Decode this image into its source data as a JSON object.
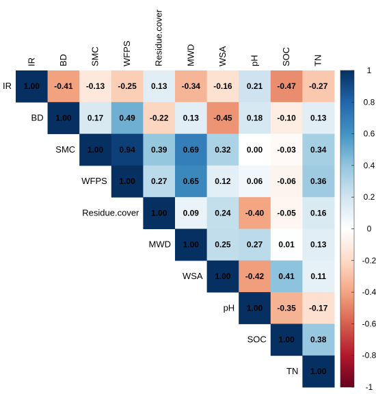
{
  "chart_data": {
    "type": "heatmap",
    "title": "",
    "layout": "upper-triangle",
    "variables": [
      "IR",
      "BD",
      "SMC",
      "WFPS",
      "Residue.cover",
      "MWD",
      "WSA",
      "pH",
      "SOC",
      "TN"
    ],
    "matrix": [
      [
        1.0,
        -0.41,
        -0.13,
        -0.25,
        0.13,
        -0.34,
        -0.16,
        0.21,
        -0.47,
        -0.27
      ],
      [
        null,
        1.0,
        0.17,
        0.49,
        -0.22,
        0.13,
        -0.45,
        0.18,
        -0.1,
        0.13
      ],
      [
        null,
        null,
        1.0,
        0.94,
        0.39,
        0.69,
        0.32,
        0.0,
        -0.03,
        0.34
      ],
      [
        null,
        null,
        null,
        1.0,
        0.27,
        0.65,
        0.12,
        0.06,
        -0.06,
        0.36
      ],
      [
        null,
        null,
        null,
        null,
        1.0,
        0.09,
        0.24,
        -0.4,
        -0.05,
        0.16
      ],
      [
        null,
        null,
        null,
        null,
        null,
        1.0,
        0.25,
        0.27,
        0.01,
        0.13
      ],
      [
        null,
        null,
        null,
        null,
        null,
        null,
        1.0,
        -0.42,
        0.41,
        0.11
      ],
      [
        null,
        null,
        null,
        null,
        null,
        null,
        null,
        1.0,
        -0.35,
        -0.17
      ],
      [
        null,
        null,
        null,
        null,
        null,
        null,
        null,
        null,
        1.0,
        0.38
      ],
      [
        null,
        null,
        null,
        null,
        null,
        null,
        null,
        null,
        null,
        1.0
      ]
    ],
    "colorbar": {
      "ticks": [
        "1",
        "0.8",
        "0.6",
        "0.4",
        "0.2",
        "0",
        "-0.2",
        "-0.4",
        "-0.6",
        "-0.8",
        "-1"
      ],
      "range": [
        -1,
        1
      ],
      "colors": [
        "#67001F",
        "#B2182B",
        "#D6604D",
        "#F4A582",
        "#FDDBC7",
        "#FFFFFF",
        "#D1E5F0",
        "#92C5DE",
        "#4393C3",
        "#2166AC",
        "#053061"
      ]
    }
  }
}
